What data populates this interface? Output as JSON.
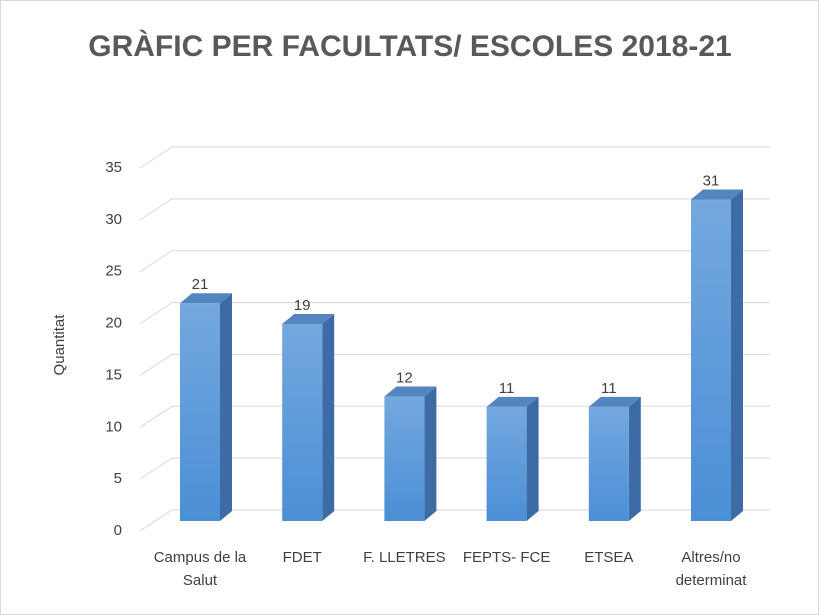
{
  "chart_data": {
    "type": "bar3d",
    "title": "GRÀFIC PER FACULTATS/ ESCOLES 2018-21",
    "y_label": "Quantitat",
    "categories": [
      "Campus de la Salut",
      "FDET",
      "F. LLETRES",
      "FEPTS- FCE",
      "ETSEA",
      "Altres/no determinat"
    ],
    "values": [
      21,
      19,
      12,
      11,
      11,
      31
    ],
    "color": "#5b9bd5",
    "ylim": [
      0,
      35
    ],
    "yticks": [
      0,
      5,
      10,
      15,
      20,
      25,
      30,
      35
    ],
    "grid": true
  }
}
